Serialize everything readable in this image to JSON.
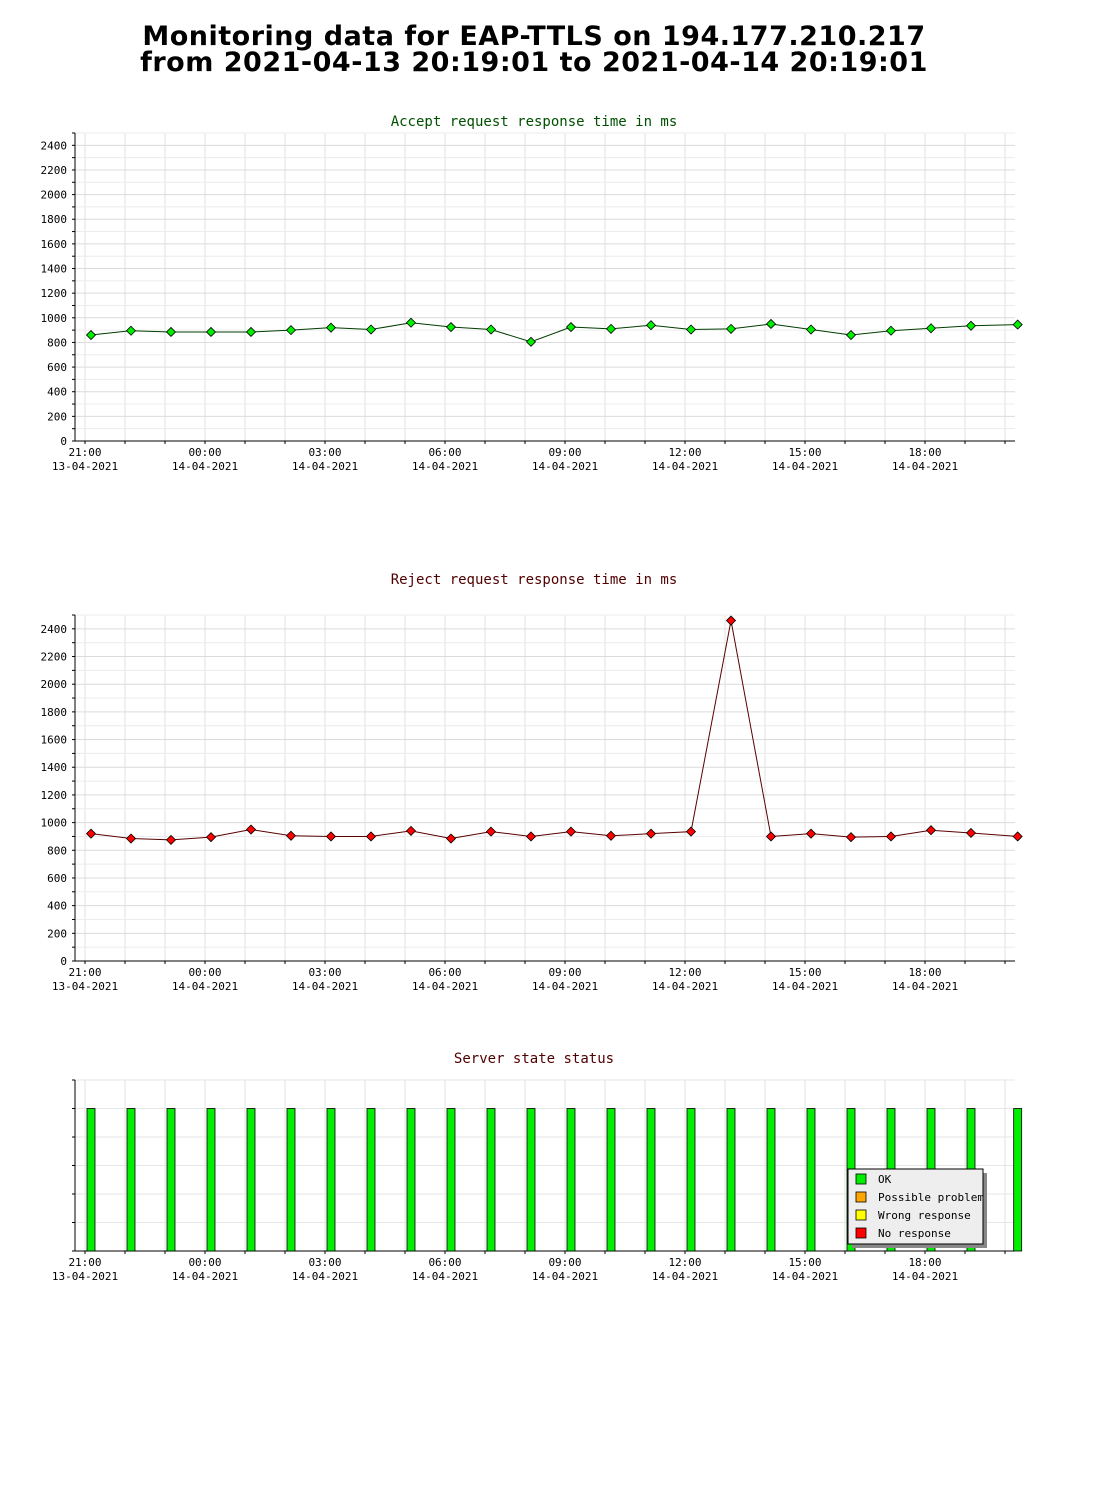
{
  "page": {
    "title_line1": "Monitoring data for EAP-TTLS on 194.177.210.217",
    "title_line2": "from 2021-04-13 20:19:01 to 2021-04-14 20:19:01"
  },
  "colors": {
    "accept_title": "#005000",
    "reject_title": "#500000",
    "status_title": "#500000",
    "ok": "#00ee00",
    "possible_problem": "#ffa500",
    "wrong_response": "#ffff00",
    "no_response": "#ff0000"
  },
  "chart_data": [
    {
      "type": "line",
      "title": "Accept request response time in ms",
      "xlabel": "",
      "ylabel": "",
      "x_range_hours": [
        -0.25,
        23.25
      ],
      "ylim": [
        0,
        2500
      ],
      "y_ticks": [
        0,
        200,
        400,
        600,
        800,
        1000,
        1200,
        1400,
        1600,
        1800,
        2000,
        2200,
        2400
      ],
      "x_tick_labels": [
        {
          "time": "21:00",
          "date": "13-04-2021"
        },
        {
          "time": "00:00",
          "date": "14-04-2021"
        },
        {
          "time": "03:00",
          "date": "14-04-2021"
        },
        {
          "time": "06:00",
          "date": "14-04-2021"
        },
        {
          "time": "09:00",
          "date": "14-04-2021"
        },
        {
          "time": "12:00",
          "date": "14-04-2021"
        },
        {
          "time": "15:00",
          "date": "14-04-2021"
        },
        {
          "time": "18:00",
          "date": "14-04-2021"
        }
      ],
      "grid": true,
      "marker_color": "#00ee00",
      "x": [
        "2021-04-13 21:09",
        "2021-04-13 22:09",
        "2021-04-13 23:09",
        "2021-04-14 00:09",
        "2021-04-14 01:09",
        "2021-04-14 02:09",
        "2021-04-14 03:09",
        "2021-04-14 04:09",
        "2021-04-14 05:09",
        "2021-04-14 06:09",
        "2021-04-14 07:09",
        "2021-04-14 08:09",
        "2021-04-14 09:09",
        "2021-04-14 10:09",
        "2021-04-14 11:09",
        "2021-04-14 12:09",
        "2021-04-14 13:09",
        "2021-04-14 14:09",
        "2021-04-14 15:09",
        "2021-04-14 16:09",
        "2021-04-14 17:09",
        "2021-04-14 18:09",
        "2021-04-14 19:09",
        "2021-04-14 20:19"
      ],
      "values": [
        860,
        895,
        885,
        885,
        885,
        900,
        920,
        905,
        960,
        925,
        905,
        805,
        925,
        910,
        940,
        905,
        910,
        950,
        905,
        860,
        895,
        915,
        935,
        945
      ]
    },
    {
      "type": "line",
      "title": "Reject request response time in ms",
      "xlabel": "",
      "ylabel": "",
      "x_range_hours": [
        -0.25,
        23.25
      ],
      "ylim": [
        0,
        2500
      ],
      "y_ticks": [
        0,
        200,
        400,
        600,
        800,
        1000,
        1200,
        1400,
        1600,
        1800,
        2000,
        2200,
        2400
      ],
      "x_tick_labels": [
        {
          "time": "21:00",
          "date": "13-04-2021"
        },
        {
          "time": "00:00",
          "date": "14-04-2021"
        },
        {
          "time": "03:00",
          "date": "14-04-2021"
        },
        {
          "time": "06:00",
          "date": "14-04-2021"
        },
        {
          "time": "09:00",
          "date": "14-04-2021"
        },
        {
          "time": "12:00",
          "date": "14-04-2021"
        },
        {
          "time": "15:00",
          "date": "14-04-2021"
        },
        {
          "time": "18:00",
          "date": "14-04-2021"
        }
      ],
      "grid": true,
      "marker_color": "#ff0000",
      "x": [
        "2021-04-13 21:09",
        "2021-04-13 22:09",
        "2021-04-13 23:09",
        "2021-04-14 00:09",
        "2021-04-14 01:09",
        "2021-04-14 02:09",
        "2021-04-14 03:09",
        "2021-04-14 04:09",
        "2021-04-14 05:09",
        "2021-04-14 06:09",
        "2021-04-14 07:09",
        "2021-04-14 08:09",
        "2021-04-14 09:09",
        "2021-04-14 10:09",
        "2021-04-14 11:09",
        "2021-04-14 12:09",
        "2021-04-14 13:09",
        "2021-04-14 14:09",
        "2021-04-14 15:09",
        "2021-04-14 16:09",
        "2021-04-14 17:09",
        "2021-04-14 18:09",
        "2021-04-14 19:09",
        "2021-04-14 20:19"
      ],
      "values": [
        920,
        885,
        875,
        895,
        950,
        905,
        900,
        900,
        940,
        885,
        935,
        900,
        935,
        905,
        920,
        935,
        2460,
        900,
        920,
        895,
        900,
        945,
        925,
        900
      ]
    },
    {
      "type": "bar",
      "title": "Server state status",
      "xlabel": "",
      "ylabel": "",
      "x_range_hours": [
        -0.25,
        23.25
      ],
      "x_tick_labels": [
        {
          "time": "21:00",
          "date": "13-04-2021"
        },
        {
          "time": "00:00",
          "date": "14-04-2021"
        },
        {
          "time": "03:00",
          "date": "14-04-2021"
        },
        {
          "time": "06:00",
          "date": "14-04-2021"
        },
        {
          "time": "09:00",
          "date": "14-04-2021"
        },
        {
          "time": "12:00",
          "date": "14-04-2021"
        },
        {
          "time": "15:00",
          "date": "14-04-2021"
        },
        {
          "time": "18:00",
          "date": "14-04-2021"
        }
      ],
      "x": [
        "2021-04-13 21:09",
        "2021-04-13 22:09",
        "2021-04-13 23:09",
        "2021-04-14 00:09",
        "2021-04-14 01:09",
        "2021-04-14 02:09",
        "2021-04-14 03:09",
        "2021-04-14 04:09",
        "2021-04-14 05:09",
        "2021-04-14 06:09",
        "2021-04-14 07:09",
        "2021-04-14 08:09",
        "2021-04-14 09:09",
        "2021-04-14 10:09",
        "2021-04-14 11:09",
        "2021-04-14 12:09",
        "2021-04-14 13:09",
        "2021-04-14 14:09",
        "2021-04-14 15:09",
        "2021-04-14 16:09",
        "2021-04-14 17:09",
        "2021-04-14 18:09",
        "2021-04-14 19:09",
        "2021-04-14 20:19"
      ],
      "status": [
        "OK",
        "OK",
        "OK",
        "OK",
        "OK",
        "OK",
        "OK",
        "OK",
        "OK",
        "OK",
        "OK",
        "OK",
        "OK",
        "OK",
        "OK",
        "OK",
        "OK",
        "OK",
        "OK",
        "OK",
        "OK",
        "OK",
        "OK",
        "OK"
      ],
      "legend_position": "bottom-right",
      "legend": [
        {
          "label": "OK",
          "color": "#00ee00"
        },
        {
          "label": "Possible problem",
          "color": "#ffa500"
        },
        {
          "label": "Wrong response",
          "color": "#ffff00"
        },
        {
          "label": "No response",
          "color": "#ff0000"
        }
      ]
    }
  ]
}
